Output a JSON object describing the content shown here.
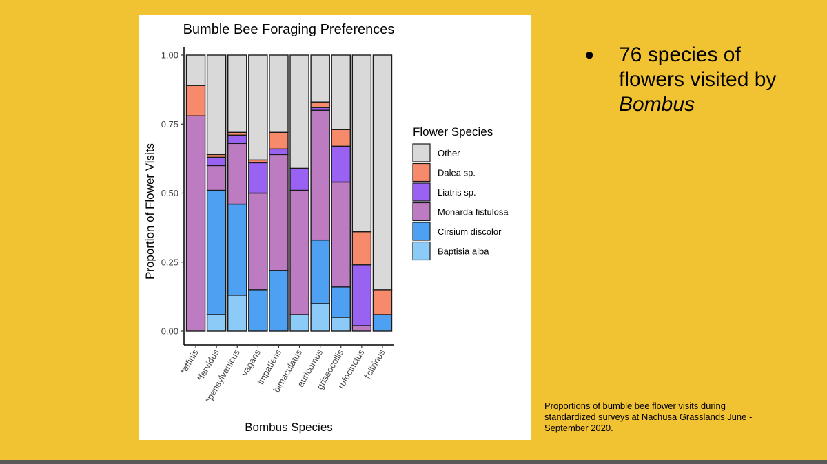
{
  "bullet": {
    "marker": "●",
    "text_prefix": "76 species of flowers visited by ",
    "text_italic": "Bombus"
  },
  "caption": "Proportions of bumble bee flower visits during standardized surveys at Nachusa Grasslands June - September 2020.",
  "colors": {
    "background": "#f1c232",
    "Other": "#d9d9d9",
    "Dalea sp.": "#f68a6a",
    "Liatris sp.": "#9a62f2",
    "Monarda fistulosa": "#bd7cc2",
    "Cirsium discolor": "#4ea1f2",
    "Baptisia alba": "#8ccaf7"
  },
  "chart_data": {
    "type": "bar",
    "stacked": true,
    "title": "Bumble Bee Foraging Preferences",
    "xlabel": "Bombus Species",
    "ylabel": "Proportion of Flower Visits",
    "ylim": [
      0,
      1
    ],
    "yticks": [
      "0.00",
      "0.25",
      "0.50",
      "0.75",
      "1.00"
    ],
    "ytick_values": [
      0,
      0.25,
      0.5,
      0.75,
      1.0
    ],
    "categories": [
      "*affinis",
      "*fervidus",
      "*pensylvanicus",
      "vagans",
      "impatiens",
      "bimaculatus",
      "auricomus",
      "griseocollis",
      "rufocinctus",
      "†citrinus"
    ],
    "legend_title": "Flower Species",
    "legend_position": "right",
    "legend_order": [
      "Other",
      "Dalea sp.",
      "Liatris sp.",
      "Monarda fistulosa",
      "Cirsium discolor",
      "Baptisia alba"
    ],
    "series": [
      {
        "name": "Baptisia alba",
        "values": [
          0.0,
          0.06,
          0.13,
          0.0,
          0.0,
          0.06,
          0.1,
          0.05,
          0.0,
          0.0
        ]
      },
      {
        "name": "Cirsium discolor",
        "values": [
          0.0,
          0.45,
          0.33,
          0.15,
          0.22,
          0.0,
          0.23,
          0.11,
          0.0,
          0.06
        ]
      },
      {
        "name": "Monarda fistulosa",
        "values": [
          0.78,
          0.09,
          0.22,
          0.35,
          0.42,
          0.45,
          0.47,
          0.38,
          0.02,
          0.0
        ]
      },
      {
        "name": "Liatris sp.",
        "values": [
          0.0,
          0.03,
          0.03,
          0.11,
          0.02,
          0.08,
          0.01,
          0.13,
          0.22,
          0.0
        ]
      },
      {
        "name": "Dalea sp.",
        "values": [
          0.11,
          0.01,
          0.01,
          0.01,
          0.06,
          0.0,
          0.02,
          0.06,
          0.12,
          0.09
        ]
      },
      {
        "name": "Other",
        "values": [
          0.11,
          0.36,
          0.28,
          0.38,
          0.28,
          0.41,
          0.17,
          0.27,
          0.64,
          0.85
        ]
      }
    ]
  }
}
